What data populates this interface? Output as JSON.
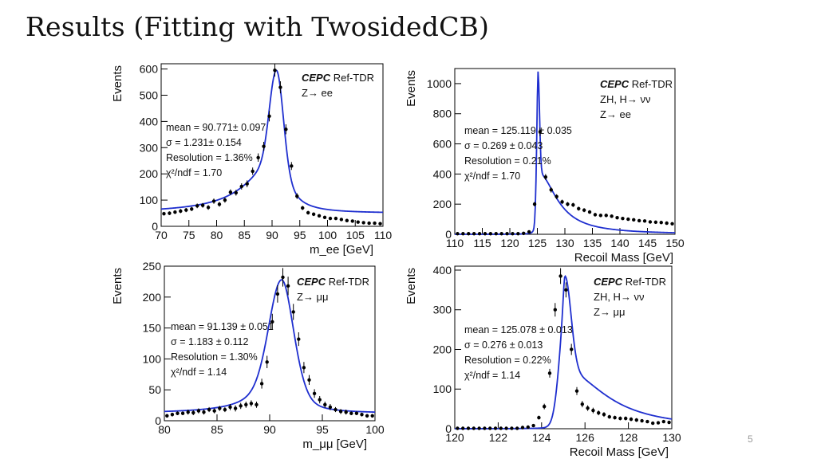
{
  "slide": {
    "title": "Results (Fitting with TwosidedCB)",
    "page_number": "5"
  },
  "chart_data": [
    {
      "type": "scatter",
      "title": "",
      "xlabel": "m_ee [GeV]",
      "ylabel": "Events",
      "xlim": [
        70,
        110
      ],
      "ylim": [
        0,
        620
      ],
      "xticks": [
        70,
        75,
        80,
        85,
        90,
        95,
        100,
        105,
        110
      ],
      "yticks": [
        0,
        100,
        200,
        300,
        400,
        500,
        600
      ],
      "tag": {
        "experiment": "CEPC",
        "label": "Ref-TDR",
        "process": [
          "Z→ ee"
        ]
      },
      "stats": [
        "mean = 90.771± 0.097",
        "σ = 1.231± 0.154",
        "Resolution = 1.36%",
        "χ²/ndf = 1.70"
      ],
      "fit": {
        "model": "TwosidedCB",
        "mean": 90.771,
        "sigma": 1.231,
        "peak": 595,
        "floor": 50,
        "tail_width_low": 6.0,
        "tail_width_high": 2.5
      },
      "points": {
        "x": [
          70.5,
          71.5,
          72.5,
          73.5,
          74.5,
          75.5,
          76.5,
          77.5,
          78.5,
          79.5,
          80.5,
          81.5,
          82.5,
          83.5,
          84.5,
          85.5,
          86.5,
          87.5,
          88.5,
          89.5,
          90.5,
          91.5,
          92.5,
          93.5,
          94.5,
          95.5,
          96.5,
          97.5,
          98.5,
          99.5,
          100.5,
          101.5,
          102.5,
          103.5,
          104.5,
          105.5,
          106.5,
          107.5,
          108.5,
          109.5
        ],
        "y": [
          48,
          50,
          54,
          58,
          62,
          66,
          78,
          80,
          72,
          96,
          84,
          100,
          130,
          128,
          152,
          162,
          210,
          262,
          305,
          420,
          595,
          530,
          370,
          230,
          115,
          70,
          52,
          46,
          40,
          34,
          30,
          30,
          26,
          22,
          20,
          16,
          14,
          12,
          12,
          10
        ],
        "err": [
          7,
          7,
          7,
          8,
          8,
          8,
          9,
          9,
          9,
          10,
          9,
          10,
          11,
          11,
          12,
          13,
          14,
          16,
          17,
          20,
          24,
          23,
          19,
          15,
          11,
          8,
          7,
          7,
          6,
          6,
          5,
          5,
          5,
          5,
          4,
          4,
          4,
          3,
          3,
          3
        ]
      }
    },
    {
      "type": "scatter",
      "title": "",
      "xlabel": "Recoil Mass [GeV]",
      "ylabel": "Events",
      "xlim": [
        110,
        150
      ],
      "ylim": [
        0,
        1100
      ],
      "xticks": [
        110,
        115,
        120,
        125,
        130,
        135,
        140,
        145,
        150
      ],
      "yticks": [
        0,
        200,
        400,
        600,
        800,
        1000
      ],
      "tag": {
        "experiment": "CEPC",
        "label": "Ref-TDR",
        "process": [
          "ZH, H→ νν",
          "Z→ ee"
        ]
      },
      "stats": [
        "mean = 125.119 ± 0.035",
        "σ = 0.269 ± 0.043",
        "Resolution = 0.21%",
        "χ²/ndf = 1.70"
      ],
      "fit": {
        "model": "TwosidedCB",
        "mean": 125.119,
        "sigma": 0.269,
        "peak": 1080,
        "floor": 0,
        "tail_width_low": 0.2,
        "tail_width_high": 4.0
      },
      "points": {
        "x": [
          110.5,
          111.5,
          112.5,
          113.5,
          114.5,
          115.5,
          116.5,
          117.5,
          118.5,
          119.5,
          120.5,
          121.5,
          122.5,
          123.5,
          124.5,
          125.5,
          126.5,
          127.5,
          128.5,
          129.5,
          130.5,
          131.5,
          132.5,
          133.5,
          134.5,
          135.5,
          136.5,
          137.5,
          138.5,
          139.5,
          140.5,
          141.5,
          142.5,
          143.5,
          144.5,
          145.5,
          146.5,
          147.5,
          148.5,
          149.5
        ],
        "y": [
          4,
          4,
          4,
          4,
          4,
          4,
          4,
          4,
          4,
          4,
          4,
          4,
          6,
          16,
          200,
          680,
          380,
          295,
          250,
          215,
          200,
          195,
          170,
          160,
          148,
          130,
          125,
          125,
          120,
          110,
          105,
          100,
          96,
          90,
          88,
          82,
          80,
          78,
          74,
          70
        ],
        "err": [
          2,
          2,
          2,
          2,
          2,
          2,
          2,
          2,
          2,
          2,
          2,
          2,
          3,
          5,
          15,
          28,
          20,
          18,
          16,
          15,
          14,
          14,
          13,
          13,
          12,
          12,
          11,
          11,
          11,
          11,
          10,
          10,
          10,
          10,
          9,
          9,
          9,
          9,
          9,
          8
        ]
      }
    },
    {
      "type": "scatter",
      "title": "",
      "xlabel": "m_μμ [GeV]",
      "ylabel": "Events",
      "xlim": [
        80,
        100
      ],
      "ylim": [
        0,
        250
      ],
      "xticks": [
        80,
        85,
        90,
        95,
        100
      ],
      "yticks": [
        0,
        50,
        100,
        150,
        200,
        250
      ],
      "tag": {
        "experiment": "CEPC",
        "label": "Ref-TDR",
        "process": [
          "Z→ μμ"
        ]
      },
      "stats": [
        "mean = 91.139 ± 0.051",
        "σ = 1.183 ± 0.112",
        "Resolution = 1.30%",
        "χ²/ndf = 1.14"
      ],
      "fit": {
        "model": "TwosidedCB",
        "mean": 91.139,
        "sigma": 1.183,
        "peak": 228,
        "floor": 12,
        "tail_width_low": 2.2,
        "tail_width_high": 1.4
      },
      "points": {
        "x": [
          80.25,
          80.75,
          81.25,
          81.75,
          82.25,
          82.75,
          83.25,
          83.75,
          84.25,
          84.75,
          85.25,
          85.75,
          86.25,
          86.75,
          87.25,
          87.75,
          88.25,
          88.75,
          89.25,
          89.75,
          90.25,
          90.75,
          91.25,
          91.75,
          92.25,
          92.75,
          93.25,
          93.75,
          94.25,
          94.75,
          95.25,
          95.75,
          96.25,
          96.75,
          97.25,
          97.75,
          98.25,
          98.75,
          99.25,
          99.75
        ],
        "y": [
          8,
          10,
          12,
          12,
          14,
          13,
          16,
          14,
          18,
          16,
          20,
          18,
          22,
          20,
          24,
          26,
          28,
          26,
          60,
          95,
          160,
          205,
          232,
          218,
          176,
          132,
          86,
          66,
          44,
          34,
          26,
          22,
          18,
          15,
          14,
          12,
          12,
          10,
          8,
          8
        ],
        "err": [
          3,
          3,
          3,
          3,
          4,
          4,
          4,
          4,
          4,
          4,
          4,
          4,
          5,
          5,
          5,
          5,
          5,
          5,
          8,
          10,
          13,
          14,
          15,
          15,
          13,
          11,
          9,
          8,
          7,
          6,
          5,
          5,
          4,
          4,
          4,
          3,
          3,
          3,
          3,
          3
        ]
      }
    },
    {
      "type": "scatter",
      "title": "",
      "xlabel": "Recoil Mass [GeV]",
      "ylabel": "Events",
      "xlim": [
        120,
        130
      ],
      "ylim": [
        0,
        410
      ],
      "xticks": [
        120,
        122,
        124,
        126,
        128,
        130
      ],
      "yticks": [
        0,
        100,
        200,
        300,
        400
      ],
      "tag": {
        "experiment": "CEPC",
        "label": "Ref-TDR",
        "process": [
          "ZH, H→ νν",
          "Z→ μμ"
        ]
      },
      "stats": [
        "mean = 125.078 ± 0.013",
        "σ = 0.276 ± 0.013",
        "Resolution = 0.22%",
        "χ²/ndf = 1.14"
      ],
      "fit": {
        "model": "TwosidedCB",
        "mean": 125.078,
        "sigma": 0.276,
        "peak": 385,
        "floor": 0,
        "tail_width_low": 0.12,
        "tail_width_high": 2.2
      },
      "points": {
        "x": [
          120.125,
          120.375,
          120.625,
          120.875,
          121.125,
          121.375,
          121.625,
          121.875,
          122.125,
          122.375,
          122.625,
          122.875,
          123.125,
          123.375,
          123.625,
          123.875,
          124.125,
          124.375,
          124.625,
          124.875,
          125.125,
          125.375,
          125.625,
          125.875,
          126.125,
          126.375,
          126.625,
          126.875,
          127.125,
          127.375,
          127.625,
          127.875,
          128.125,
          128.375,
          128.625,
          128.875,
          129.125,
          129.375,
          129.625,
          129.875
        ],
        "y": [
          1,
          1,
          1,
          1,
          1,
          1,
          1,
          1,
          1,
          1,
          1,
          1,
          3,
          4,
          8,
          28,
          56,
          140,
          300,
          385,
          350,
          200,
          95,
          62,
          52,
          46,
          40,
          36,
          30,
          28,
          26,
          26,
          24,
          22,
          20,
          18,
          14,
          15,
          18,
          16
        ],
        "err": [
          1,
          1,
          1,
          1,
          1,
          1,
          1,
          1,
          1,
          1,
          1,
          1,
          2,
          2,
          3,
          5,
          7,
          11,
          17,
          20,
          19,
          14,
          10,
          8,
          7,
          7,
          6,
          6,
          5,
          5,
          5,
          5,
          5,
          5,
          4,
          4,
          4,
          4,
          4,
          4
        ]
      }
    }
  ]
}
